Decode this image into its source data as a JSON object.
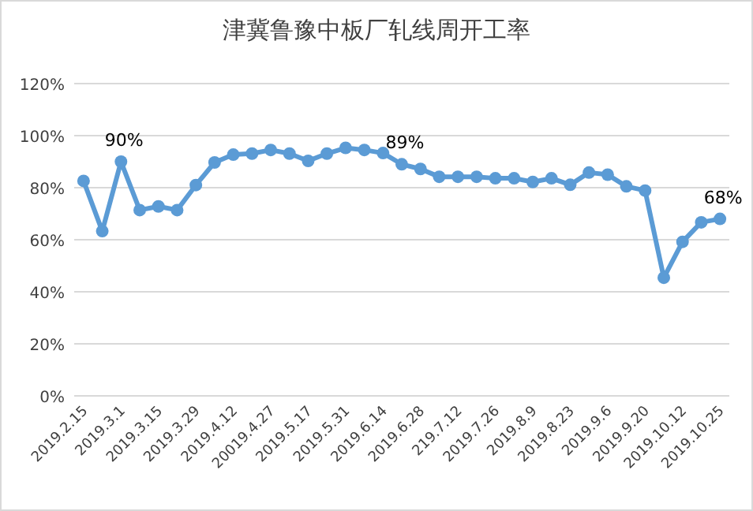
{
  "chart_data": {
    "type": "line",
    "title": "津冀鲁豫中板厂轧线周开工率",
    "categories": [
      "2019.2.15",
      null,
      "2019.3.1",
      null,
      "2019.3.15",
      null,
      "2019.3.29",
      null,
      "2019.4.12",
      null,
      "20019.4.27",
      null,
      "2019.5.17",
      null,
      "2019.5.31",
      null,
      "2019.6.14",
      null,
      "2019.6.28",
      null,
      "219.7.12",
      null,
      "2019.7.26",
      null,
      "2019.8.9",
      null,
      "2019.8.23",
      null,
      "2019.9.6",
      null,
      "2019.9.20",
      null,
      "2019.10.12",
      null,
      "2019.10.25"
    ],
    "series": [
      {
        "color": "#5b9bd5",
        "values": [
          82.6,
          63.3,
          90,
          71.4,
          72.8,
          71.4,
          81,
          89.7,
          92.7,
          93.1,
          94.5,
          93.1,
          90.3,
          93.1,
          95.3,
          94.5,
          93.3,
          89,
          87.2,
          84.2,
          84.2,
          84.2,
          83.6,
          83.6,
          82.2,
          83.6,
          81.1,
          85.8,
          85,
          80.5,
          78.9,
          45.4,
          59.2,
          66.7,
          68
        ],
        "value_labels": [
          null,
          null,
          "90%",
          null,
          null,
          null,
          null,
          null,
          null,
          null,
          null,
          null,
          null,
          null,
          null,
          null,
          null,
          "89%",
          null,
          null,
          null,
          null,
          null,
          null,
          null,
          null,
          null,
          null,
          null,
          null,
          null,
          null,
          null,
          null,
          "68%"
        ]
      }
    ],
    "ylim": [
      0,
      120
    ],
    "yticks": [
      {
        "value": 0,
        "label": "0%"
      },
      {
        "value": 20,
        "label": "20%"
      },
      {
        "value": 40,
        "label": "40%"
      },
      {
        "value": 60,
        "label": "60%"
      },
      {
        "value": 80,
        "label": "80%"
      },
      {
        "value": 100,
        "label": "100%"
      },
      {
        "value": 120,
        "label": "120%"
      }
    ],
    "grid": "y",
    "marker": "circle",
    "line_style": "solid"
  }
}
